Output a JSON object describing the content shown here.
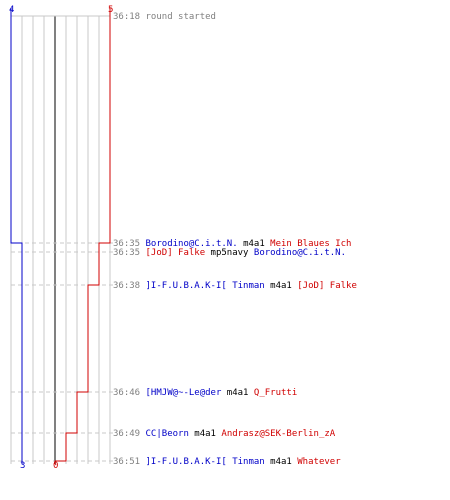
{
  "theme": {
    "blue": "#0000c8",
    "red": "#d00000",
    "gray": "#808080",
    "grid": "#c8c8c8",
    "mid_axis": "#808080"
  },
  "chart_data": {
    "type": "line",
    "description": "",
    "series": [
      {
        "name": "",
        "color": "#0000c8",
        "start_label": "4",
        "end_label": "3",
        "steps": [
          4,
          4,
          3,
          3,
          3,
          3,
          3,
          3,
          3
        ]
      },
      {
        "name": "",
        "color": "#d00000",
        "start_label": "5",
        "end_label": "0",
        "steps": [
          5,
          5,
          5,
          4,
          3,
          2,
          1,
          0,
          0
        ]
      }
    ],
    "xlim": [
      -5,
      5
    ],
    "grid": true
  },
  "events": [
    {
      "time": "36:18",
      "text": "round started",
      "kind": "system"
    },
    {
      "time": "36:35",
      "killer": "Borodino@C.i.t.N.",
      "killer_color": "blue",
      "weapon": "m4a1",
      "victim": "Mein Blaues Ich",
      "victim_color": "red"
    },
    {
      "time": "36:35",
      "killer": "[JoD] Falke",
      "killer_color": "red",
      "weapon": "mp5navy",
      "victim": "Borodino@C.i.t.N.",
      "victim_color": "blue"
    },
    {
      "time": "36:38",
      "killer": "]I-F.U.B.A.K-I[ Tinman",
      "killer_color": "blue",
      "weapon": "m4a1",
      "victim": "[JoD] Falke",
      "victim_color": "red"
    },
    {
      "time": "36:46",
      "killer": "[HMJW@~-Le@der",
      "killer_color": "blue",
      "weapon": "m4a1",
      "victim": "Q_Frutti",
      "victim_color": "red"
    },
    {
      "time": "36:49",
      "killer": "CC|Beorn",
      "killer_color": "blue",
      "weapon": "m4a1",
      "victim": "Andrasz@SEK-Berlin_zA",
      "victim_color": "red"
    },
    {
      "time": "36:51",
      "killer": "]I-F.U.B.A.K-I[ Tinman",
      "killer_color": "blue",
      "weapon": "m4a1",
      "victim": "Whatever",
      "victim_color": "red"
    }
  ]
}
